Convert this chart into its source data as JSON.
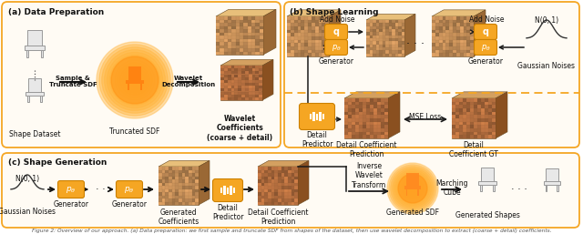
{
  "bg_color": "#ffffff",
  "orange_border": "#F5A623",
  "orange_dark": "#E8940A",
  "section_a_title": "(a) Data Preparation",
  "section_b_title": "(b) Shape Learning",
  "section_c_title": "(c) Shape Generation",
  "caption": "Figure 2: Overview of our approach. (a) Data preparation: we first sample and truncate SDF from shapes of the dataset, then use wavelet decomposition to extract (coarse + detail) coefficients.",
  "text_color": "#111111",
  "arrow_color": "#1a1a1a",
  "cube_front": "#C8975A",
  "cube_top": "#E8C07A",
  "cube_side": "#A07040",
  "cube_front2": "#B87848",
  "cube_top2": "#D4A060",
  "cube_side2": "#8A5830",
  "glow_outer": "#FFD070",
  "glow_inner": "#FF9020"
}
